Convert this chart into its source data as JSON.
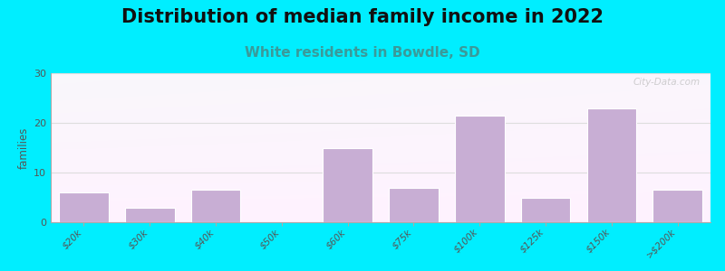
{
  "title": "Distribution of median family income in 2022",
  "subtitle": "White residents in Bowdle, SD",
  "categories": [
    "$20k",
    "$30k",
    "$40k",
    "$50k",
    "$60k",
    "$75k",
    "$100k",
    "$125k",
    "$150k",
    ">$200k"
  ],
  "values": [
    6,
    3,
    6.5,
    0,
    15,
    7,
    21.5,
    5,
    23,
    6.5
  ],
  "bar_color": "#c8aed4",
  "background_outer": "#00eeff",
  "ylabel": "families",
  "ylim": [
    0,
    30
  ],
  "yticks": [
    0,
    10,
    20,
    30
  ],
  "title_fontsize": 15,
  "subtitle_fontsize": 11,
  "subtitle_color": "#3a9a9a",
  "watermark": "City-Data.com",
  "grid_color": "#dddddd",
  "spine_color": "#aaaaaa"
}
